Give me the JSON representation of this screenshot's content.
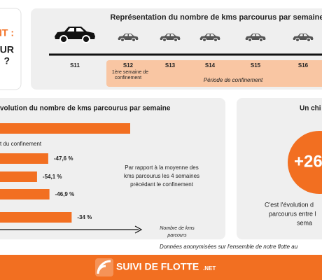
{
  "header": {
    "lines": [
      "NT :",
      "UR",
      "?"
    ]
  },
  "timeline": {
    "title": "Représentation du nombre de kms parcourus par semaine",
    "weeks": [
      "S11",
      "S12",
      "S13",
      "S14",
      "S15",
      "S16"
    ],
    "first_week_note": [
      "1ère semaine de",
      "confinement"
    ],
    "period_label": "Période de confinement"
  },
  "evolution": {
    "title": "volution du nombre de kms parcourus par semaine",
    "reference_label": "t du confinement",
    "values": [
      0,
      -47.6,
      -54.1,
      -46.9,
      -34
    ],
    "value_labels": [
      null,
      "-47,6 %",
      "-54,1 %",
      "-46,9 %",
      "-34 %"
    ],
    "note": [
      "Par rapport à la moyenne des",
      "kms parcourus les 4 semaines",
      "précédant le confinement"
    ],
    "axis_label": [
      "Nombre de kms",
      "parcours"
    ]
  },
  "key_figure": {
    "title": "Un chi",
    "value": "+26",
    "text": [
      "C'est l'évolution d",
      "parcourus entre l",
      "sema"
    ]
  },
  "footnote": "Données anonymisées sur l'ensemble de notre flotte au",
  "footer": {
    "brand": "SUIVI DE FLOTTE",
    "suffix": ".NET"
  }
}
